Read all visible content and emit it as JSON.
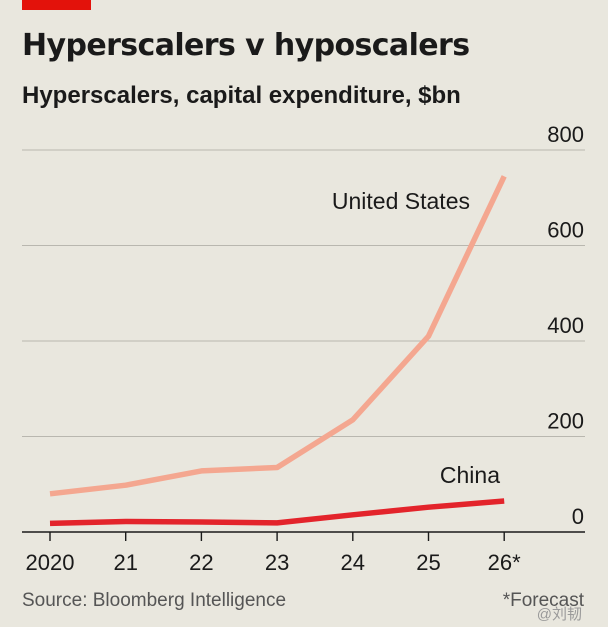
{
  "colors": {
    "accent": "#e3120b",
    "united_states": "#f4a790",
    "china": "#e3242b",
    "grid": "#b9b7af",
    "baseline": "#1a1a1a",
    "background": "#e9e7de"
  },
  "header": {
    "title": "Hyperscalers v hyposcalers",
    "subtitle": "Hyperscalers, capital expenditure, $bn"
  },
  "footer": {
    "source": "Source: Bloomberg Intelligence",
    "footnote": "*Forecast",
    "watermark": "@刘韧"
  },
  "chart_data": {
    "type": "line",
    "categories": [
      "2020",
      "21",
      "22",
      "23",
      "24",
      "25",
      "26*"
    ],
    "ylim": [
      0,
      800
    ],
    "yticks": [
      0,
      200,
      400,
      600,
      800
    ],
    "grid": true,
    "y_axis_side": "right",
    "series": [
      {
        "name": "United States",
        "values": [
          80,
          98,
          128,
          135,
          235,
          410,
          745
        ],
        "color": "#f4a790"
      },
      {
        "name": "China",
        "values": [
          18,
          22,
          21,
          19,
          36,
          52,
          65
        ],
        "color": "#e3242b"
      }
    ],
    "xlabel": "",
    "ylabel": ""
  }
}
